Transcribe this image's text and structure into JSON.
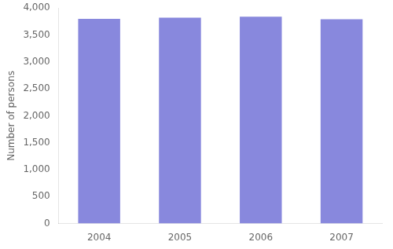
{
  "chart_data": {
    "type": "bar",
    "categories": [
      "2004",
      "2005",
      "2006",
      "2007"
    ],
    "values": [
      3800,
      3820,
      3840,
      3790
    ],
    "color": "#8888dd",
    "ylabel": "Number of persons",
    "ylim": [
      0,
      4000
    ],
    "yticks": [
      0,
      500,
      {
        "value": 1000,
        "label": "1,000"
      },
      {
        "value": 1500,
        "label": "1,500"
      },
      {
        "value": 2000,
        "label": "2,000"
      },
      {
        "value": 2500,
        "label": "2,500"
      },
      {
        "value": 3000,
        "label": "3,000"
      },
      {
        "value": 3500,
        "label": "3,500"
      },
      {
        "value": 4000,
        "label": "4,000"
      }
    ],
    "grid": false
  }
}
